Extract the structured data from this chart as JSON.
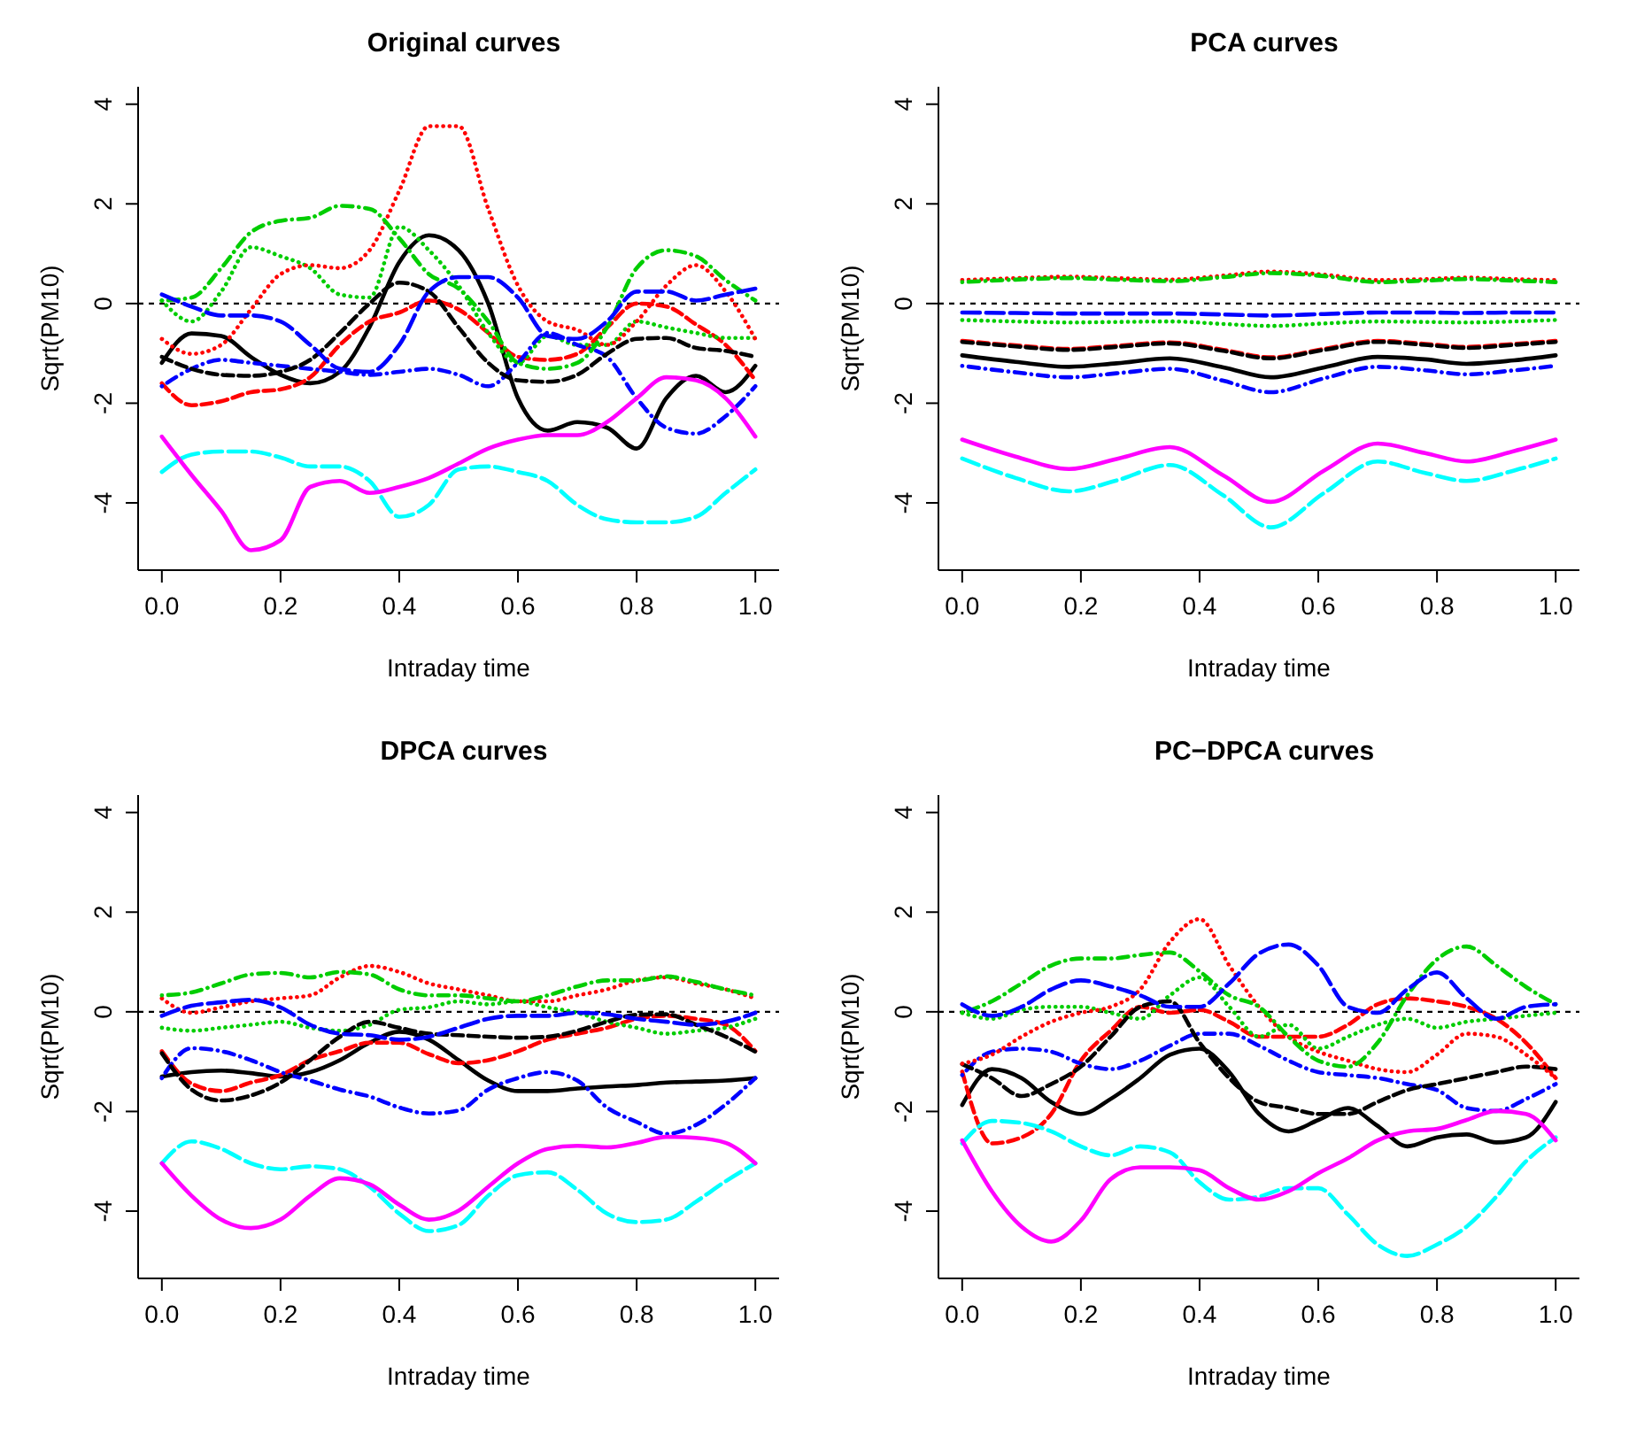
{
  "chart_data": [
    {
      "type": "line",
      "title": "Original curves",
      "xlabel": "Intraday time",
      "ylabel": "Sqrt(PM10)",
      "xlim": [
        -0.04,
        1.04
      ],
      "xticks": [
        {
          "value": 0,
          "label": "0.0"
        },
        {
          "value": 0.2,
          "label": "0.2"
        },
        {
          "value": 0.4,
          "label": "0.4"
        },
        {
          "value": 0.6,
          "label": "0.6"
        },
        {
          "value": 0.8,
          "label": "0.8"
        },
        {
          "value": 1,
          "label": "1.0"
        }
      ],
      "ylim": [
        -5.35,
        4.35
      ],
      "yticks": [
        -4,
        -2,
        0,
        2,
        4
      ],
      "ref_lines": [
        {
          "axis": "y",
          "value": 0,
          "color": "#000000",
          "line_style": "dashed"
        }
      ],
      "x": [
        0,
        0.05,
        0.1,
        0.15,
        0.2,
        0.25,
        0.3,
        0.35,
        0.4,
        0.45,
        0.5,
        0.55,
        0.6,
        0.65,
        0.7,
        0.75,
        0.8,
        0.85,
        0.9,
        0.95,
        1
      ],
      "series": [
        {
          "color": "#000000",
          "line_style": "solid",
          "values": [
            -1.19,
            -0.6,
            -0.65,
            -1.07,
            -1.43,
            -1.6,
            -1.37,
            -0.47,
            0.83,
            1.37,
            1.07,
            0,
            -1.9,
            -2.55,
            -2.38,
            -2.49,
            -2.91,
            -1.9,
            -1.45,
            -1.78,
            -1.25
          ]
        },
        {
          "color": "#ff0000",
          "line_style": "dashed",
          "values": [
            -1.6,
            -2.04,
            -1.96,
            -1.78,
            -1.72,
            -1.48,
            -0.83,
            -0.36,
            -0.18,
            0.06,
            -0.12,
            -0.59,
            -1.07,
            -1.13,
            -1.01,
            -0.48,
            0,
            -0.06,
            -0.42,
            -0.83,
            -1.54
          ]
        },
        {
          "color": "#00cd00",
          "line_style": "dotted",
          "values": [
            0.06,
            -0.36,
            0.24,
            1.13,
            0.95,
            0.71,
            0.18,
            0.12,
            1.54,
            1.07,
            0.36,
            -0.59,
            -1.19,
            -0.65,
            -0.83,
            -0.83,
            -0.36,
            -0.48,
            -0.59,
            -0.69,
            -0.69
          ]
        },
        {
          "color": "#0000ff",
          "line_style": "dotdash",
          "values": [
            -1.66,
            -1.31,
            -1.13,
            -1.19,
            -1.25,
            -1.31,
            -1.37,
            -1.43,
            -1.37,
            -1.31,
            -1.43,
            -1.66,
            -1.19,
            -0.59,
            -0.83,
            -1.07,
            -1.9,
            -2.49,
            -2.61,
            -2.26,
            -1.66
          ]
        },
        {
          "color": "#00ffff",
          "line_style": "longdash",
          "values": [
            -3.38,
            -3.03,
            -2.97,
            -2.97,
            -3.09,
            -3.27,
            -3.27,
            -3.56,
            -4.28,
            -4.04,
            -3.33,
            -3.27,
            -3.38,
            -3.56,
            -4.04,
            -4.33,
            -4.39,
            -4.39,
            -4.28,
            -3.8,
            -3.33
          ]
        },
        {
          "color": "#ff00ff",
          "line_style": "solid",
          "values": [
            -2.67,
            -3.44,
            -4.16,
            -4.95,
            -4.75,
            -3.68,
            -3.56,
            -3.8,
            -3.68,
            -3.5,
            -3.21,
            -2.91,
            -2.73,
            -2.64,
            -2.64,
            -2.38,
            -1.9,
            -1.48,
            -1.54,
            -1.9,
            -2.67
          ]
        },
        {
          "color": "#000000",
          "line_style": "dashed",
          "values": [
            -1.07,
            -1.31,
            -1.43,
            -1.45,
            -1.37,
            -1.13,
            -0.59,
            0,
            0.42,
            0.24,
            -0.48,
            -1.19,
            -1.54,
            -1.57,
            -1.43,
            -1.01,
            -0.71,
            -0.69,
            -0.89,
            -0.95,
            -1.07
          ]
        },
        {
          "color": "#ff0000",
          "line_style": "dotted",
          "values": [
            -0.71,
            -1.01,
            -0.83,
            -0.12,
            0.59,
            0.77,
            0.71,
            1.07,
            2.26,
            3.56,
            3.56,
            1.9,
            0.36,
            -0.36,
            -0.53,
            -0.83,
            -0.36,
            0.36,
            0.77,
            0.24,
            -0.71
          ]
        },
        {
          "color": "#00cd00",
          "line_style": "dotdash",
          "values": [
            0.06,
            0.12,
            0.71,
            1.43,
            1.66,
            1.72,
            1.96,
            1.9,
            1.31,
            0.59,
            0.3,
            -0.36,
            -1.19,
            -1.31,
            -1.19,
            -0.48,
            0.71,
            1.07,
            0.95,
            0.47,
            0.06
          ]
        },
        {
          "color": "#0000ff",
          "line_style": "longdash",
          "values": [
            0.18,
            -0.06,
            -0.24,
            -0.24,
            -0.36,
            -0.83,
            -1.31,
            -1.37,
            -0.83,
            0.24,
            0.53,
            0.53,
            0.12,
            -0.65,
            -0.71,
            -0.36,
            0.24,
            0.24,
            0.06,
            0.18,
            0.3
          ]
        }
      ]
    },
    {
      "type": "line",
      "title": "PCA curves",
      "xlabel": "Intraday time",
      "ylabel": "Sqrt(PM10)",
      "xlim": [
        -0.04,
        1.04
      ],
      "xticks": [
        {
          "value": 0,
          "label": "0.0"
        },
        {
          "value": 0.2,
          "label": "0.2"
        },
        {
          "value": 0.4,
          "label": "0.4"
        },
        {
          "value": 0.6,
          "label": "0.6"
        },
        {
          "value": 0.8,
          "label": "0.8"
        },
        {
          "value": 1,
          "label": "1.0"
        }
      ],
      "ylim": [
        -5.35,
        4.35
      ],
      "yticks": [
        -4,
        -2,
        0,
        2,
        4
      ],
      "ref_lines": [
        {
          "axis": "y",
          "value": 0,
          "color": "#000000",
          "line_style": "dashed"
        }
      ],
      "x": [
        0,
        0.09,
        0.18,
        0.26,
        0.35,
        0.44,
        0.52,
        0.61,
        0.7,
        0.78,
        0.85,
        0.93,
        1
      ],
      "series": [
        {
          "color": "#000000",
          "line_style": "solid",
          "values": [
            -1.04,
            -1.17,
            -1.27,
            -1.2,
            -1.1,
            -1.28,
            -1.48,
            -1.28,
            -1.07,
            -1.12,
            -1.21,
            -1.14,
            -1.04
          ]
        },
        {
          "color": "#ff0000",
          "line_style": "dashed",
          "values": [
            -0.75,
            -0.84,
            -0.91,
            -0.85,
            -0.78,
            -0.93,
            -1.08,
            -0.91,
            -0.75,
            -0.81,
            -0.87,
            -0.81,
            -0.75
          ]
        },
        {
          "color": "#00cd00",
          "line_style": "dotted",
          "values": [
            -0.33,
            -0.36,
            -0.38,
            -0.37,
            -0.36,
            -0.41,
            -0.45,
            -0.4,
            -0.36,
            -0.37,
            -0.38,
            -0.36,
            -0.33
          ]
        },
        {
          "color": "#0000ff",
          "line_style": "dotdash",
          "values": [
            -1.25,
            -1.38,
            -1.48,
            -1.4,
            -1.31,
            -1.55,
            -1.78,
            -1.5,
            -1.27,
            -1.34,
            -1.42,
            -1.34,
            -1.25
          ]
        },
        {
          "color": "#00ffff",
          "line_style": "longdash",
          "values": [
            -3.11,
            -3.5,
            -3.77,
            -3.55,
            -3.24,
            -3.85,
            -4.49,
            -3.8,
            -3.17,
            -3.4,
            -3.56,
            -3.35,
            -3.11
          ]
        },
        {
          "color": "#ff00ff",
          "line_style": "solid",
          "values": [
            -2.73,
            -3.07,
            -3.32,
            -3.12,
            -2.88,
            -3.45,
            -3.98,
            -3.35,
            -2.81,
            -3.0,
            -3.17,
            -2.96,
            -2.73
          ]
        },
        {
          "color": "#000000",
          "line_style": "dashed",
          "values": [
            -0.77,
            -0.86,
            -0.93,
            -0.87,
            -0.8,
            -0.95,
            -1.1,
            -0.93,
            -0.77,
            -0.83,
            -0.89,
            -0.83,
            -0.77
          ]
        },
        {
          "color": "#ff0000",
          "line_style": "dotted",
          "values": [
            0.47,
            0.51,
            0.54,
            0.51,
            0.48,
            0.56,
            0.64,
            0.58,
            0.47,
            0.49,
            0.52,
            0.49,
            0.47
          ]
        },
        {
          "color": "#00cd00",
          "line_style": "dotdash",
          "values": [
            0.43,
            0.48,
            0.51,
            0.48,
            0.45,
            0.53,
            0.61,
            0.55,
            0.43,
            0.46,
            0.49,
            0.46,
            0.43
          ]
        },
        {
          "color": "#0000ff",
          "line_style": "longdash",
          "values": [
            -0.18,
            -0.19,
            -0.2,
            -0.2,
            -0.2,
            -0.22,
            -0.24,
            -0.21,
            -0.18,
            -0.18,
            -0.19,
            -0.18,
            -0.18
          ]
        }
      ]
    },
    {
      "type": "line",
      "title": "DPCA curves",
      "xlabel": "Intraday time",
      "ylabel": "Sqrt(PM10)",
      "xlim": [
        -0.04,
        1.04
      ],
      "xticks": [
        {
          "value": 0,
          "label": "0.0"
        },
        {
          "value": 0.2,
          "label": "0.2"
        },
        {
          "value": 0.4,
          "label": "0.4"
        },
        {
          "value": 0.6,
          "label": "0.6"
        },
        {
          "value": 0.8,
          "label": "0.8"
        },
        {
          "value": 1,
          "label": "1.0"
        }
      ],
      "ylim": [
        -5.35,
        4.35
      ],
      "yticks": [
        -4,
        -2,
        0,
        2,
        4
      ],
      "ref_lines": [
        {
          "axis": "y",
          "value": 0,
          "color": "#000000",
          "line_style": "dashed"
        }
      ],
      "x": [
        0,
        0.05,
        0.1,
        0.15,
        0.2,
        0.25,
        0.3,
        0.35,
        0.4,
        0.45,
        0.5,
        0.55,
        0.6,
        0.65,
        0.7,
        0.75,
        0.8,
        0.85,
        0.9,
        0.95,
        1
      ],
      "series": [
        {
          "color": "#000000",
          "line_style": "solid",
          "values": [
            -1.3,
            -1.21,
            -1.18,
            -1.23,
            -1.3,
            -1.21,
            -0.97,
            -0.62,
            -0.4,
            -0.56,
            -0.97,
            -1.38,
            -1.59,
            -1.59,
            -1.54,
            -1.5,
            -1.47,
            -1.42,
            -1.4,
            -1.38,
            -1.33
          ]
        },
        {
          "color": "#ff0000",
          "line_style": "dashed",
          "values": [
            -0.79,
            -1.44,
            -1.59,
            -1.42,
            -1.27,
            -0.97,
            -0.79,
            -0.62,
            -0.62,
            -0.85,
            -1.03,
            -0.97,
            -0.79,
            -0.56,
            -0.44,
            -0.32,
            -0.14,
            -0.08,
            -0.14,
            -0.26,
            -0.79
          ]
        },
        {
          "color": "#00cd00",
          "line_style": "dotted",
          "values": [
            -0.32,
            -0.38,
            -0.32,
            -0.26,
            -0.2,
            -0.32,
            -0.38,
            -0.26,
            0.04,
            0.09,
            0.21,
            0.15,
            0.21,
            0.09,
            -0.02,
            -0.2,
            -0.32,
            -0.44,
            -0.38,
            -0.32,
            -0.14
          ]
        },
        {
          "color": "#0000ff",
          "line_style": "dotdash",
          "values": [
            -1.33,
            -0.73,
            -0.79,
            -0.97,
            -1.21,
            -1.38,
            -1.56,
            -1.7,
            -1.92,
            -2.04,
            -1.98,
            -1.56,
            -1.33,
            -1.21,
            -1.38,
            -1.92,
            -2.21,
            -2.45,
            -2.27,
            -1.86,
            -1.33
          ]
        },
        {
          "color": "#00ffff",
          "line_style": "longdash",
          "values": [
            -3.04,
            -2.6,
            -2.75,
            -3.04,
            -3.16,
            -3.1,
            -3.16,
            -3.51,
            -4.05,
            -4.4,
            -4.28,
            -3.69,
            -3.28,
            -3.22,
            -3.57,
            -4.05,
            -4.22,
            -4.17,
            -3.81,
            -3.4,
            -3.04
          ]
        },
        {
          "color": "#ff00ff",
          "line_style": "solid",
          "values": [
            -3.04,
            -3.69,
            -4.17,
            -4.34,
            -4.17,
            -3.69,
            -3.34,
            -3.46,
            -3.87,
            -4.17,
            -3.99,
            -3.51,
            -3.04,
            -2.75,
            -2.69,
            -2.72,
            -2.63,
            -2.51,
            -2.53,
            -2.63,
            -3.04
          ]
        },
        {
          "color": "#000000",
          "line_style": "dashed",
          "values": [
            -0.83,
            -1.56,
            -1.78,
            -1.68,
            -1.42,
            -0.97,
            -0.5,
            -0.2,
            -0.32,
            -0.44,
            -0.47,
            -0.5,
            -0.52,
            -0.5,
            -0.38,
            -0.2,
            -0.06,
            -0.05,
            -0.26,
            -0.5,
            -0.8
          ]
        },
        {
          "color": "#ff0000",
          "line_style": "dotted",
          "values": [
            0.27,
            -0.02,
            0.09,
            0.21,
            0.27,
            0.33,
            0.69,
            0.92,
            0.8,
            0.57,
            0.45,
            0.33,
            0.21,
            0.21,
            0.33,
            0.45,
            0.63,
            0.69,
            0.57,
            0.45,
            0.27
          ]
        },
        {
          "color": "#00cd00",
          "line_style": "dotdash",
          "values": [
            0.33,
            0.39,
            0.57,
            0.75,
            0.78,
            0.69,
            0.8,
            0.75,
            0.45,
            0.33,
            0.33,
            0.27,
            0.21,
            0.33,
            0.51,
            0.63,
            0.63,
            0.71,
            0.6,
            0.45,
            0.33
          ]
        },
        {
          "color": "#0000ff",
          "line_style": "longdash",
          "values": [
            -0.08,
            0.12,
            0.19,
            0.24,
            0.09,
            -0.26,
            -0.44,
            -0.47,
            -0.56,
            -0.5,
            -0.32,
            -0.14,
            -0.08,
            -0.08,
            -0.02,
            -0.05,
            -0.14,
            -0.2,
            -0.26,
            -0.2,
            -0.02
          ]
        }
      ]
    },
    {
      "type": "line",
      "title": "PC−DPCA curves",
      "xlabel": "Intraday time",
      "ylabel": "Sqrt(PM10)",
      "xlim": [
        -0.04,
        1.04
      ],
      "xticks": [
        {
          "value": 0,
          "label": "0.0"
        },
        {
          "value": 0.2,
          "label": "0.2"
        },
        {
          "value": 0.4,
          "label": "0.4"
        },
        {
          "value": 0.6,
          "label": "0.6"
        },
        {
          "value": 0.8,
          "label": "0.8"
        },
        {
          "value": 1,
          "label": "1.0"
        }
      ],
      "ylim": [
        -5.35,
        4.35
      ],
      "yticks": [
        -4,
        -2,
        0,
        2,
        4
      ],
      "ref_lines": [
        {
          "axis": "y",
          "value": 0,
          "color": "#000000",
          "line_style": "dashed"
        }
      ],
      "x": [
        0,
        0.05,
        0.1,
        0.15,
        0.2,
        0.25,
        0.3,
        0.35,
        0.4,
        0.45,
        0.5,
        0.55,
        0.6,
        0.65,
        0.7,
        0.75,
        0.8,
        0.85,
        0.9,
        0.95,
        1
      ],
      "series": [
        {
          "color": "#000000",
          "line_style": "solid",
          "values": [
            -1.87,
            -1.15,
            -1.33,
            -1.81,
            -2.05,
            -1.75,
            -1.33,
            -0.86,
            -0.74,
            -1.21,
            -2.05,
            -2.4,
            -2.17,
            -1.93,
            -2.29,
            -2.7,
            -2.52,
            -2.46,
            -2.62,
            -2.52,
            -1.81
          ]
        },
        {
          "color": "#ff0000",
          "line_style": "dashed",
          "values": [
            -1.2,
            -2.64,
            -2.52,
            -2.05,
            -0.98,
            -0.38,
            0.1,
            -0.02,
            0.04,
            -0.2,
            -0.5,
            -0.5,
            -0.5,
            -0.26,
            0.15,
            0.27,
            0.21,
            0.1,
            -0.14,
            -0.62,
            -1.33
          ]
        },
        {
          "color": "#00cd00",
          "line_style": "dotted",
          "values": [
            -0.02,
            -0.14,
            0.04,
            0.1,
            0.1,
            -0.02,
            -0.14,
            0.33,
            0.69,
            0.1,
            -0.5,
            -0.26,
            -0.74,
            -0.5,
            -0.26,
            -0.14,
            -0.32,
            -0.2,
            -0.14,
            -0.08,
            -0.02
          ]
        },
        {
          "color": "#0000ff",
          "line_style": "dotdash",
          "values": [
            -1.27,
            -0.8,
            -0.74,
            -0.8,
            -1.04,
            -1.15,
            -0.98,
            -0.68,
            -0.44,
            -0.44,
            -0.68,
            -0.98,
            -1.21,
            -1.27,
            -1.33,
            -1.45,
            -1.57,
            -1.93,
            -1.99,
            -1.75,
            -1.45
          ]
        },
        {
          "color": "#00ffff",
          "line_style": "longdash",
          "values": [
            -2.64,
            -2.19,
            -2.23,
            -2.4,
            -2.7,
            -2.88,
            -2.7,
            -2.82,
            -3.42,
            -3.77,
            -3.71,
            -3.54,
            -3.54,
            -4.07,
            -4.67,
            -4.9,
            -4.67,
            -4.31,
            -3.71,
            -3.0,
            -2.52
          ]
        },
        {
          "color": "#ff00ff",
          "line_style": "solid",
          "values": [
            -2.58,
            -3.6,
            -4.31,
            -4.61,
            -4.19,
            -3.36,
            -3.12,
            -3.12,
            -3.18,
            -3.54,
            -3.77,
            -3.6,
            -3.24,
            -2.94,
            -2.58,
            -2.4,
            -2.35,
            -2.17,
            -1.99,
            -2.05,
            -2.58
          ]
        },
        {
          "color": "#000000",
          "line_style": "dashed",
          "values": [
            -1.05,
            -1.33,
            -1.69,
            -1.45,
            -1.1,
            -0.5,
            0.1,
            0.21,
            -0.62,
            -1.33,
            -1.81,
            -1.93,
            -2.05,
            -2.05,
            -1.81,
            -1.57,
            -1.45,
            -1.33,
            -1.21,
            -1.1,
            -1.15
          ]
        },
        {
          "color": "#ff0000",
          "line_style": "dotted",
          "values": [
            -1.04,
            -0.86,
            -0.5,
            -0.2,
            -0.02,
            0.1,
            0.45,
            1.4,
            1.86,
            0.93,
            0.1,
            -0.5,
            -0.8,
            -0.98,
            -1.15,
            -1.21,
            -0.86,
            -0.44,
            -0.5,
            -0.86,
            -1.33
          ]
        },
        {
          "color": "#00cd00",
          "line_style": "dotdash",
          "values": [
            -0.02,
            0.21,
            0.57,
            0.93,
            1.07,
            1.07,
            1.14,
            1.19,
            0.81,
            0.33,
            0.1,
            -0.5,
            -0.98,
            -1.1,
            -0.62,
            0.33,
            1.05,
            1.31,
            0.93,
            0.5,
            0.15
          ]
        },
        {
          "color": "#0000ff",
          "line_style": "longdash",
          "values": [
            0.15,
            -0.08,
            0.1,
            0.45,
            0.63,
            0.51,
            0.33,
            0.1,
            0.1,
            0.57,
            1.17,
            1.35,
            0.93,
            0.1,
            -0.02,
            0.45,
            0.79,
            0.27,
            -0.14,
            0.1,
            0.15
          ]
        }
      ]
    }
  ]
}
